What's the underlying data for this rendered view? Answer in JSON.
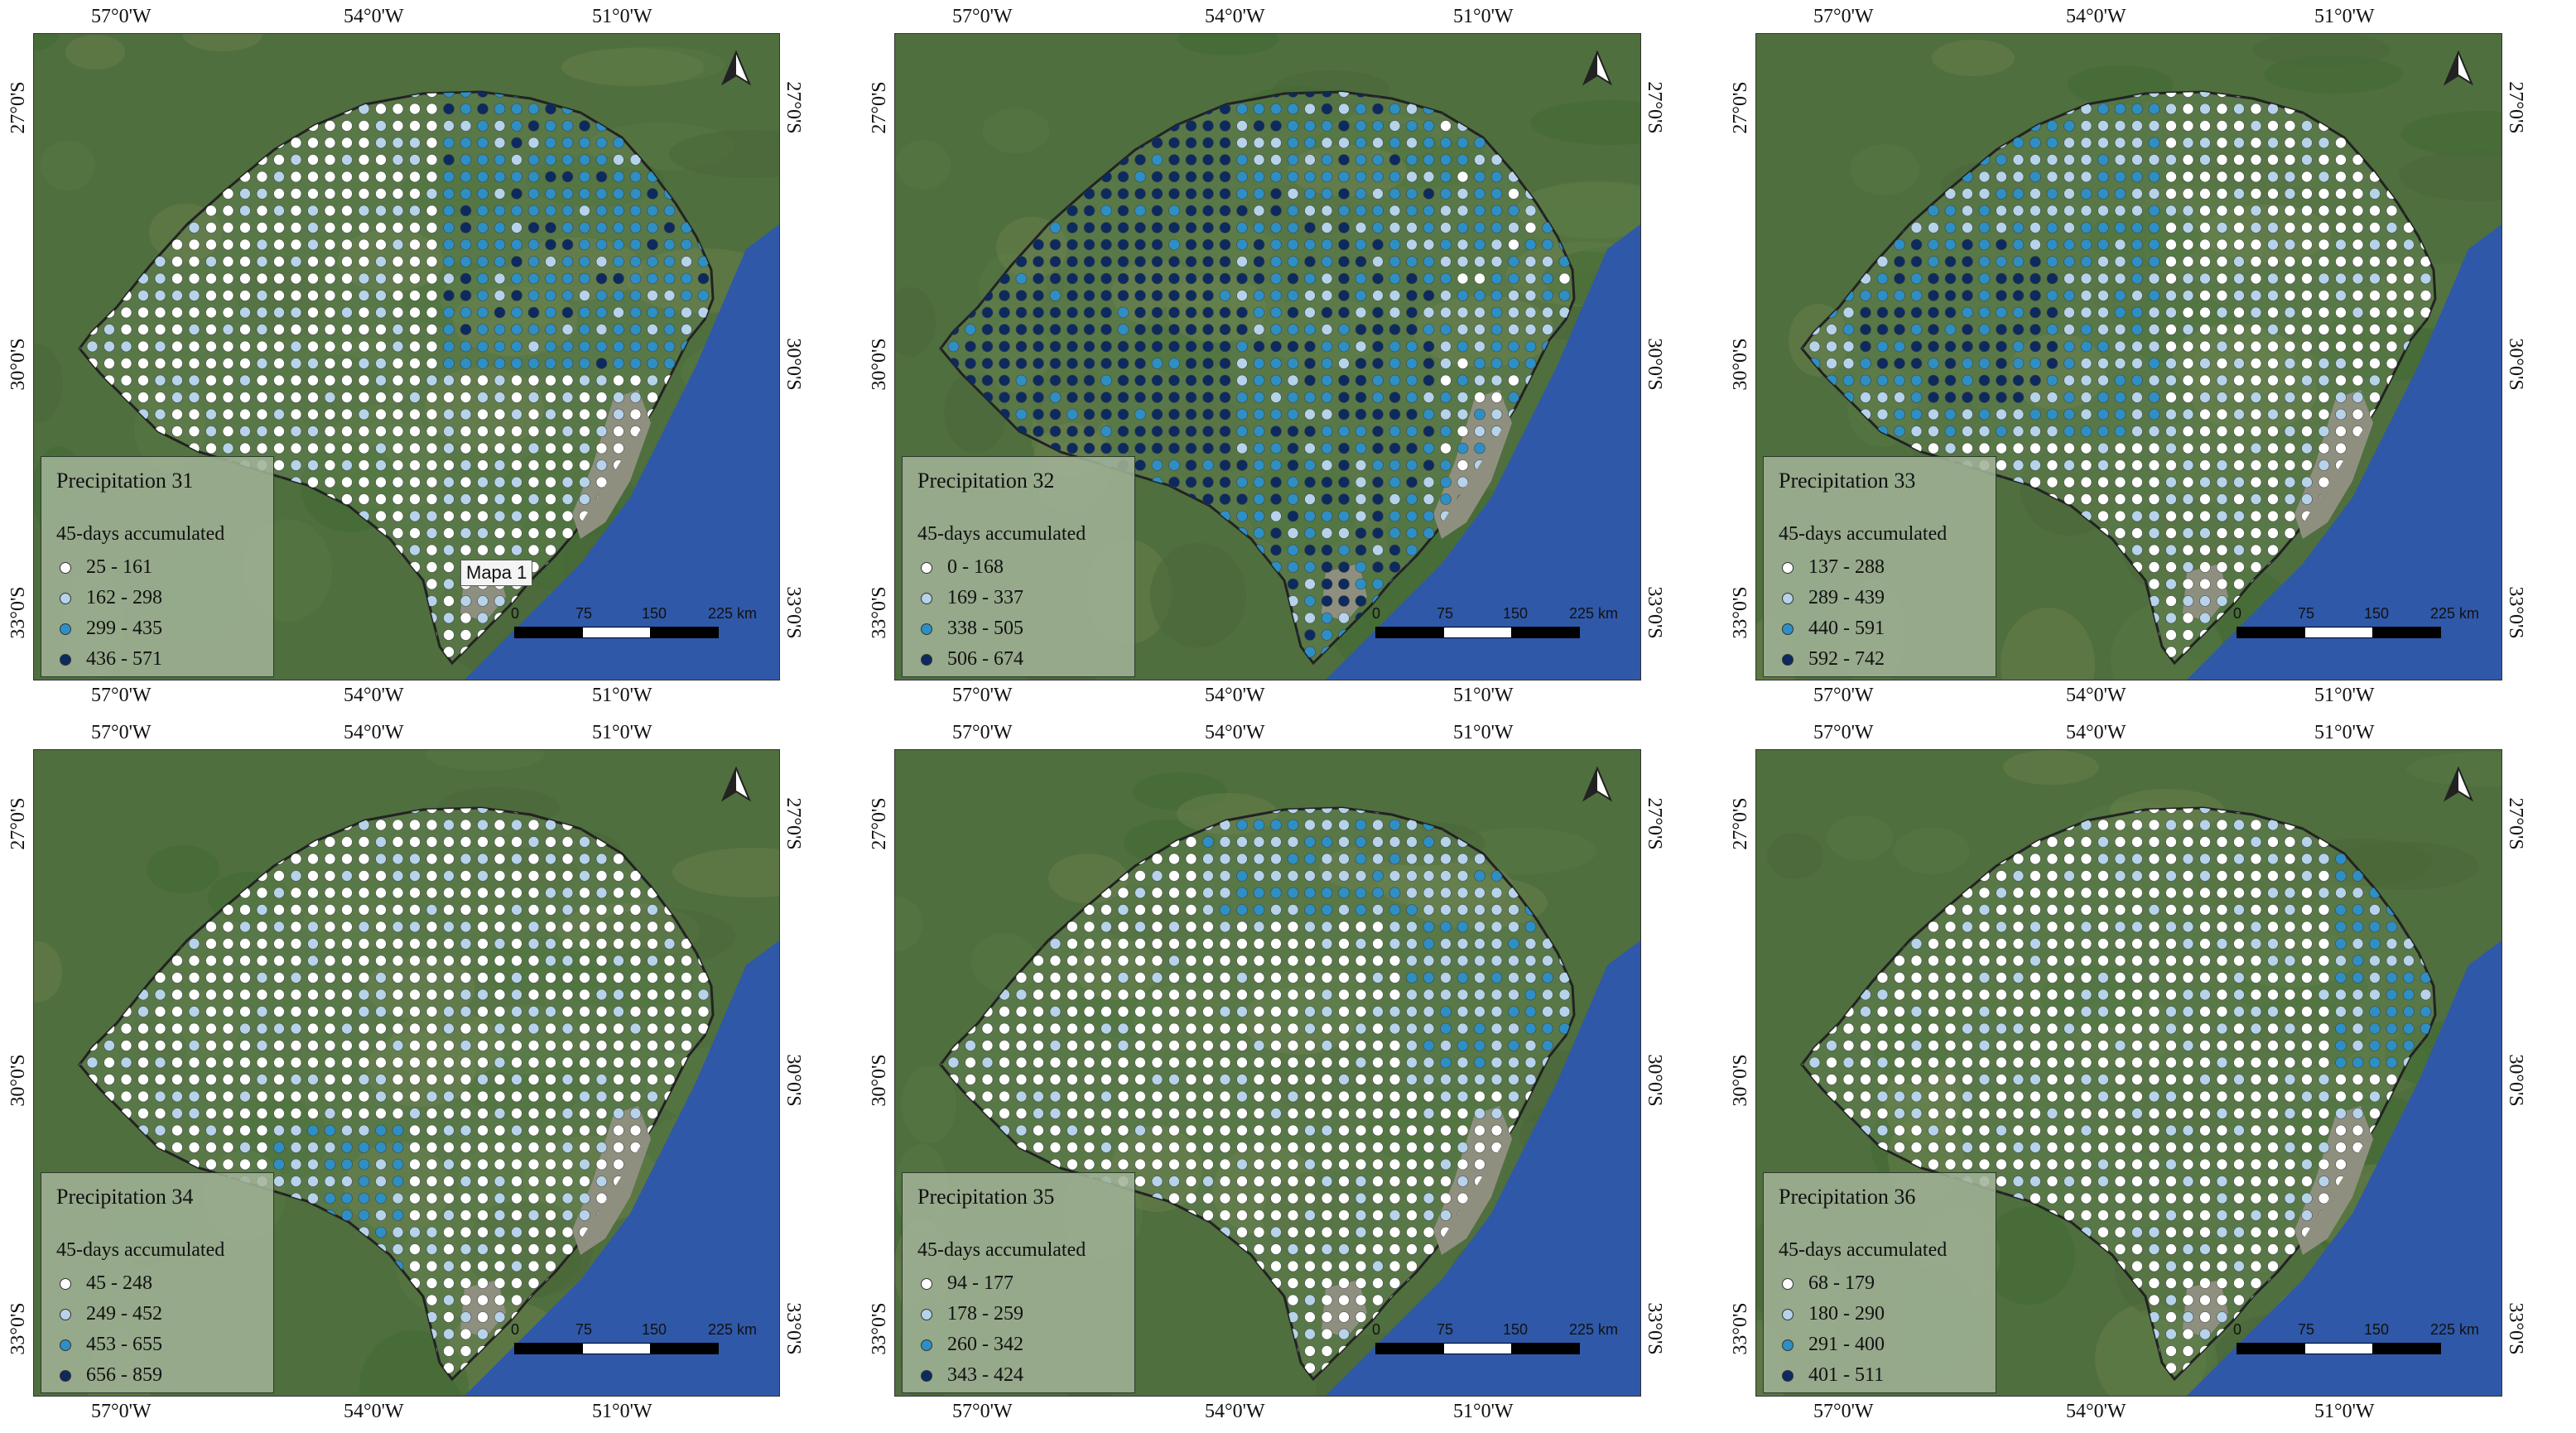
{
  "coord_labels": {
    "lon": [
      "57°0'W",
      "54°0'W",
      "51°0'W"
    ],
    "lat": [
      "27°0'S",
      "30°0'S",
      "33°0'S"
    ]
  },
  "colors": {
    "class1": "#ffffff",
    "class2": "#b6d3ea",
    "class3": "#2e8fc4",
    "class4": "#0d2a5e",
    "ocean": "#2f58a8",
    "land": "#4f6f3e",
    "lagoon": "#8f8f80"
  },
  "legend_subtitle": "45-days accumulated",
  "scalebar": {
    "labels": [
      "0",
      "75",
      "150",
      "225 km"
    ]
  },
  "north_arrow_icon": "north-arrow-icon",
  "tooltip_text": "Mapa 1",
  "panels": [
    {
      "title": "Precipitation 31",
      "classes": [
        "25 - 161",
        "162 - 298",
        "299 - 435",
        "436 - 571"
      ]
    },
    {
      "title": "Precipitation 32",
      "classes": [
        "0 - 168",
        "169 - 337",
        "338 - 505",
        "506 - 674"
      ]
    },
    {
      "title": "Precipitation 33",
      "classes": [
        "137 - 288",
        "289 - 439",
        "440 - 591",
        "592 - 742"
      ]
    },
    {
      "title": "Precipitation 34",
      "classes": [
        "45 - 248",
        "249 - 452",
        "453 - 655",
        "656 - 859"
      ]
    },
    {
      "title": "Precipitation 35",
      "classes": [
        "94 - 177",
        "178 - 259",
        "260 - 342",
        "343 - 424"
      ]
    },
    {
      "title": "Precipitation 36",
      "classes": [
        "68 - 179",
        "180 - 290",
        "291 - 400",
        "401 - 511"
      ]
    }
  ]
}
